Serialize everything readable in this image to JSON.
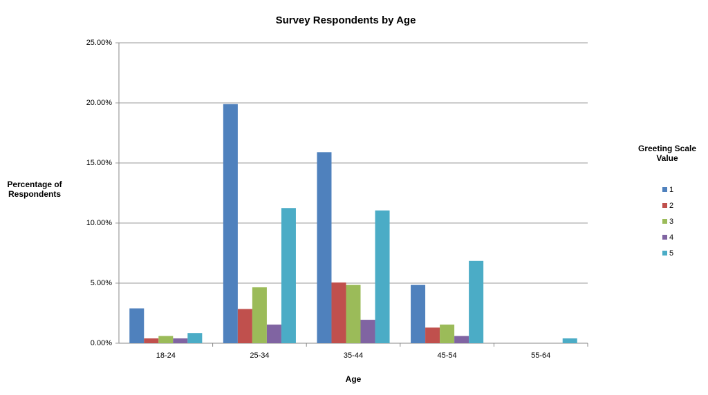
{
  "chart_data": {
    "type": "bar",
    "title": "Survey Respondents by Age",
    "x_label": "Age",
    "y_label": "Percentage of Respondents",
    "legend_title": "Greeting Scale Value",
    "legend": "right",
    "categories": [
      "18-24",
      "25-34",
      "35-44",
      "45-54",
      "55-64"
    ],
    "series": [
      {
        "name": "1",
        "color": "#4f81bd",
        "values": [
          2.9,
          19.9,
          15.9,
          4.85,
          0
        ]
      },
      {
        "name": "2",
        "color": "#c0504d",
        "values": [
          0.4,
          2.85,
          5.05,
          1.3,
          0
        ]
      },
      {
        "name": "3",
        "color": "#9bbb59",
        "values": [
          0.6,
          4.65,
          4.85,
          1.55,
          0
        ]
      },
      {
        "name": "4",
        "color": "#8064a2",
        "values": [
          0.4,
          1.55,
          1.95,
          0.6,
          0
        ]
      },
      {
        "name": "5",
        "color": "#4bacc6",
        "values": [
          0.85,
          11.25,
          11.05,
          6.85,
          0.4
        ]
      }
    ],
    "ylim": [
      0,
      25
    ],
    "yticks": [
      {
        "value": 0,
        "label": "0.00%"
      },
      {
        "value": 5,
        "label": "5.00%"
      },
      {
        "value": 10,
        "label": "10.00%"
      },
      {
        "value": 15,
        "label": "15.00%"
      },
      {
        "value": 20,
        "label": "20.00%"
      },
      {
        "value": 25,
        "label": "25.00%"
      }
    ],
    "grid": true
  }
}
